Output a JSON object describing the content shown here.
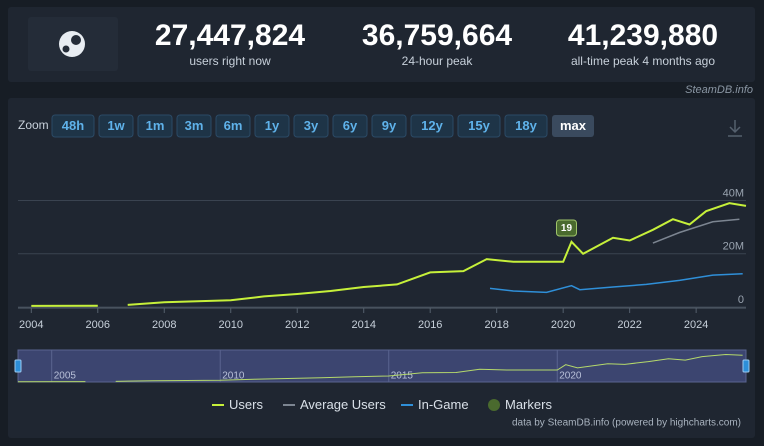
{
  "stats": [
    {
      "value": "27,447,824",
      "label": "users right now"
    },
    {
      "value": "36,759,664",
      "label": "24-hour peak"
    },
    {
      "value": "41,239,880",
      "label": "all-time peak 4 months ago"
    }
  ],
  "watermark": "SteamDB.info",
  "zoom_label": "Zoom",
  "zoom_buttons": [
    "48h",
    "1w",
    "1m",
    "3m",
    "6m",
    "1y",
    "3y",
    "6y",
    "9y",
    "12y",
    "15y",
    "18y",
    "max"
  ],
  "active_zoom": "max",
  "credit": "data by SteamDB.info (powered by highcharts.com)",
  "chart_data": {
    "type": "line",
    "xlim": [
      2003.6,
      2025.5
    ],
    "xticks": [
      2004,
      2006,
      2008,
      2010,
      2012,
      2014,
      2016,
      2018,
      2020,
      2022,
      2024
    ],
    "ylim": [
      0,
      59
    ],
    "yticks": [
      0,
      {
        "value": 20,
        "label": "20M"
      },
      {
        "value": 40,
        "label": "40M"
      }
    ],
    "grid": true,
    "series": [
      {
        "name": "Users",
        "color": "#c6f03a",
        "x": [
          2004,
          2006,
          2006.5,
          2006.9,
          2008,
          2010,
          2011,
          2012,
          2013,
          2014,
          2015,
          2016,
          2017,
          2017.7,
          2018.5,
          2019.5,
          2020,
          2020.25,
          2020.6,
          2021.5,
          2022,
          2022.7,
          2023.3,
          2023.8,
          2024.3,
          2025,
          2025.5
        ],
        "values": [
          0.4,
          0.5,
          null,
          0.8,
          1.8,
          2.5,
          4,
          4.9,
          6,
          7.5,
          8.5,
          13,
          13.5,
          18,
          17,
          17,
          17,
          24.5,
          20,
          26,
          25,
          29,
          33,
          31,
          36,
          39,
          38
        ]
      },
      {
        "name": "Average Users",
        "color": "#7c8591",
        "x": [
          2022.7,
          2023.5,
          2024.5,
          2025.3
        ],
        "values": [
          24,
          28,
          32,
          33
        ]
      },
      {
        "name": "In-Game",
        "color": "#2f8fd8",
        "x": [
          2017.8,
          2018.5,
          2019.5,
          2020.25,
          2020.5,
          2021.5,
          2022.5,
          2023.5,
          2024.5,
          2025.4
        ],
        "values": [
          7,
          6,
          5.5,
          8,
          6.5,
          7.5,
          8.5,
          10,
          12,
          12.5
        ]
      }
    ],
    "markers": {
      "name": "Markers",
      "color": "#4a6a2e",
      "items": [
        {
          "x": 2020.1,
          "label": "19"
        }
      ]
    },
    "navigator": {
      "xlim": [
        2004,
        2025.6
      ],
      "xticks": [
        2005,
        2010,
        2015,
        2020
      ]
    }
  }
}
